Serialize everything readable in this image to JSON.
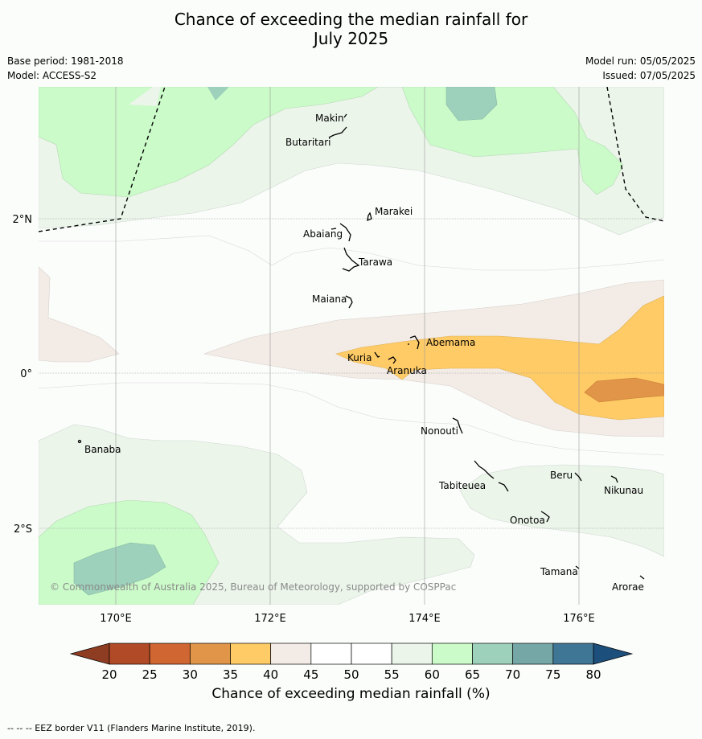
{
  "title_line1": "Chance of exceeding the median rainfall for",
  "title_line2": "July 2025",
  "base_period": "Base period: 1981-2018",
  "model": "Model: ACCESS-S2",
  "model_run": "Model run: 05/05/2025",
  "issued": "Issued: 07/05/2025",
  "credit": "© Commonwealth of Australia 2025, Bureau of Meteorology, supported by COSPPac",
  "colorbar_title": "Chance of exceeding median rainfall (%)",
  "footer": "-- -- -- EEZ border V11 (Flanders Marine Institute, 2019).",
  "lat_labels": [
    "2°N",
    "0°",
    "2°S"
  ],
  "lon_labels": [
    "170°E",
    "172°E",
    "174°E",
    "176°E"
  ],
  "islands": [
    "Makin",
    "Butaritari",
    "Marakei",
    "Abaiang",
    "Tarawa",
    "Maiana",
    "Abemama",
    "Kuria",
    "Aranuka",
    "Nonouti",
    "Banaba",
    "Tabiteuea",
    "Beru",
    "Nikunau",
    "Onotoa",
    "Tamana",
    "Arorae"
  ],
  "colorbar": {
    "ticks": [
      "20",
      "25",
      "30",
      "35",
      "40",
      "45",
      "50",
      "55",
      "60",
      "65",
      "70",
      "75",
      "80"
    ],
    "colors": [
      "#b14a26",
      "#d06631",
      "#e09548",
      "#fecb66",
      "#f2ebe6",
      "#ffffff",
      "#ffffff",
      "#ebf5ea",
      "#cbfbc9",
      "#9dd1bb",
      "#75a7a6",
      "#3f7595"
    ],
    "under_color": "#8e3d22",
    "over_color": "#1d4f7c"
  }
}
